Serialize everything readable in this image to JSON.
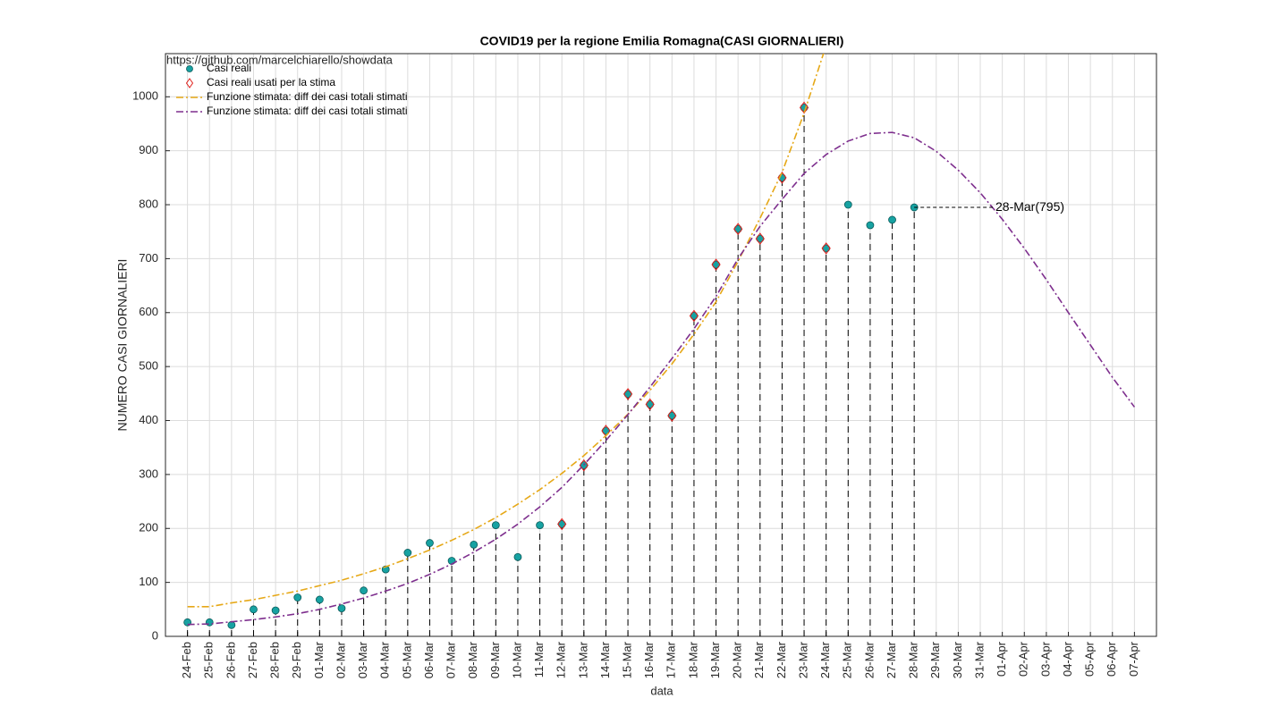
{
  "chart_data": {
    "type": "line",
    "title": "COVID19 per la regione Emilia Romagna(CASI GIORNALIERI)",
    "source": "https://github.com/marcelchiarello/showdata",
    "xlabel": "data",
    "ylabel": "NUMERO CASI GIORNALIERI",
    "categories": [
      "24-Feb",
      "25-Feb",
      "26-Feb",
      "27-Feb",
      "28-Feb",
      "29-Feb",
      "01-Mar",
      "02-Mar",
      "03-Mar",
      "04-Mar",
      "05-Mar",
      "06-Mar",
      "07-Mar",
      "08-Mar",
      "09-Mar",
      "10-Mar",
      "11-Mar",
      "12-Mar",
      "13-Mar",
      "14-Mar",
      "15-Mar",
      "16-Mar",
      "17-Mar",
      "18-Mar",
      "19-Mar",
      "20-Mar",
      "21-Mar",
      "22-Mar",
      "23-Mar",
      "24-Mar",
      "25-Mar",
      "26-Mar",
      "27-Mar",
      "28-Mar",
      "29-Mar",
      "30-Mar",
      "31-Mar",
      "01-Apr",
      "02-Apr",
      "03-Apr",
      "04-Apr",
      "05-Apr",
      "06-Apr",
      "07-Apr"
    ],
    "ylim": [
      0,
      1080
    ],
    "yticks": [
      0,
      100,
      200,
      300,
      400,
      500,
      600,
      700,
      800,
      900,
      1000
    ],
    "grid": true,
    "series": [
      {
        "name": "Casi reali",
        "color": "#17a2a2",
        "style": "marker-stem",
        "values": [
          26,
          26,
          21,
          50,
          48,
          72,
          68,
          52,
          85,
          124,
          155,
          173,
          140,
          170,
          206,
          147,
          206,
          208,
          317,
          381,
          449,
          430,
          409,
          594,
          689,
          755,
          737,
          850,
          980,
          719,
          800,
          762,
          772,
          795,
          null,
          null,
          null,
          null,
          null,
          null,
          null,
          null,
          null,
          null
        ]
      },
      {
        "name": "Casi reali usati per la stima",
        "color": "#e0201b",
        "style": "diamond",
        "values": [
          null,
          null,
          null,
          null,
          null,
          null,
          null,
          null,
          null,
          null,
          null,
          null,
          null,
          null,
          null,
          null,
          null,
          208,
          317,
          381,
          449,
          430,
          409,
          594,
          689,
          755,
          737,
          850,
          980,
          719,
          null,
          null,
          null,
          null,
          null,
          null,
          null,
          null,
          null,
          null,
          null,
          null,
          null,
          null
        ]
      },
      {
        "name": "Funzione stimata: diff dei casi totali stimati",
        "color": "#e6a817",
        "style": "dashdot",
        "values": [
          55,
          55,
          62,
          68,
          76,
          84,
          94,
          104,
          116,
          129,
          144,
          160,
          178,
          198,
          220,
          245,
          272,
          302,
          335,
          372,
          412,
          456,
          505,
          560,
          620,
          695,
          775,
          860,
          970,
          1095,
          null,
          null,
          null,
          null,
          null,
          null,
          null,
          null,
          null,
          null,
          null,
          null,
          null,
          null
        ]
      },
      {
        "name": "Funzione stimata: diff dei casi totali stimati",
        "color": "#7e2f8e",
        "style": "dashdot",
        "values": [
          22,
          23,
          27,
          31,
          36,
          42,
          50,
          60,
          71,
          84,
          98,
          115,
          134,
          156,
          180,
          208,
          240,
          276,
          318,
          363,
          411,
          462,
          515,
          570,
          630,
          700,
          760,
          810,
          858,
          893,
          918,
          932,
          934,
          924,
          899,
          864,
          822,
          773,
          719,
          661,
          600,
          540,
          480,
          425
        ]
      }
    ],
    "annotation": {
      "text": "28-Mar(795)",
      "category_index": 33,
      "series_index": 0
    }
  }
}
